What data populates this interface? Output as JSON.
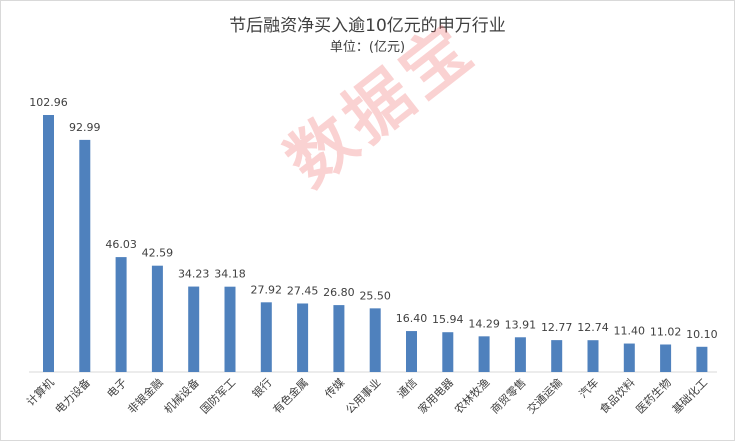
{
  "chart_data": {
    "type": "bar",
    "title": "节后融资净买入逾10亿元的申万行业",
    "subtitle": "单位：(亿元)",
    "categories": [
      "计算机",
      "电力设备",
      "电子",
      "非银金融",
      "机械设备",
      "国防军工",
      "银行",
      "有色金属",
      "传媒",
      "公用事业",
      "通信",
      "家用电器",
      "农林牧渔",
      "商贸零售",
      "交通运输",
      "汽车",
      "食品饮料",
      "医药生物",
      "基础化工"
    ],
    "values": [
      102.96,
      92.99,
      46.03,
      42.59,
      34.23,
      34.18,
      27.92,
      27.45,
      26.8,
      25.5,
      16.4,
      15.94,
      14.29,
      13.91,
      12.77,
      12.74,
      11.4,
      11.02,
      10.1
    ],
    "value_labels": [
      "102.96",
      "92.99",
      "46.03",
      "42.59",
      "34.23",
      "34.18",
      "27.92",
      "27.45",
      "26.80",
      "25.50",
      "16.40",
      "15.94",
      "14.29",
      "13.91",
      "12.77",
      "12.74",
      "11.40",
      "11.02",
      "10.10"
    ],
    "ylim": [
      0,
      102.96
    ],
    "bar_color": "#4f81bd",
    "grid": false,
    "legend": "none"
  },
  "watermark": "数据宝"
}
